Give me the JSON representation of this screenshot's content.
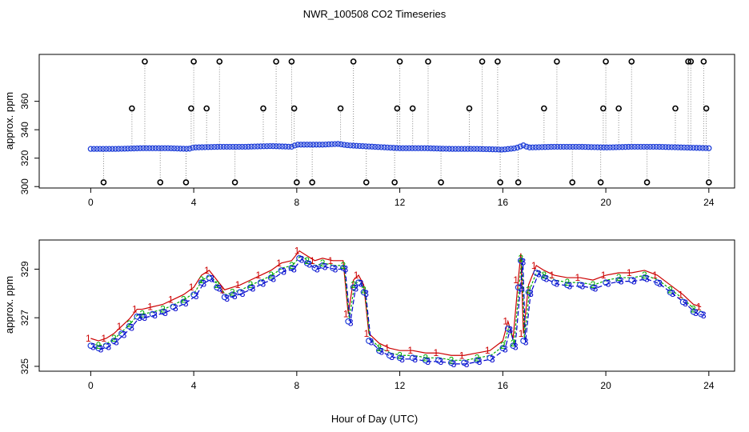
{
  "title": "NWR_100508  CO2 Timeseries",
  "xlabel": "Hour of Day (UTC)",
  "chart_data": [
    {
      "type": "scatter",
      "panel": "top",
      "ylabel": "approx. ppm",
      "xlim": [
        -2,
        25
      ],
      "ylim": [
        299,
        393
      ],
      "xticks": [
        0,
        4,
        8,
        12,
        16,
        20,
        24
      ],
      "yticks": [
        300,
        320,
        340,
        360
      ],
      "baseline": [
        [
          0,
          326.5
        ],
        [
          1,
          326.5
        ],
        [
          2,
          327
        ],
        [
          3,
          327
        ],
        [
          3.8,
          326.5
        ],
        [
          4,
          327.5
        ],
        [
          5,
          328
        ],
        [
          6,
          328
        ],
        [
          7,
          328.5
        ],
        [
          7.8,
          328
        ],
        [
          8,
          329.5
        ],
        [
          9,
          329.5
        ],
        [
          9.6,
          330
        ],
        [
          10,
          329
        ],
        [
          11,
          328
        ],
        [
          12,
          327
        ],
        [
          13,
          327
        ],
        [
          14,
          326.5
        ],
        [
          15,
          326.5
        ],
        [
          16,
          326
        ],
        [
          16.5,
          327
        ],
        [
          16.8,
          329
        ],
        [
          17,
          327.5
        ],
        [
          18,
          328
        ],
        [
          19,
          328
        ],
        [
          20,
          327.5
        ],
        [
          21,
          328
        ],
        [
          22,
          328
        ],
        [
          23,
          327.5
        ],
        [
          24,
          327
        ]
      ],
      "outliers": [
        [
          0.5,
          303
        ],
        [
          1.6,
          355
        ],
        [
          2.1,
          388
        ],
        [
          2.7,
          303
        ],
        [
          3.7,
          303
        ],
        [
          3.9,
          355
        ],
        [
          4,
          388
        ],
        [
          4.5,
          355
        ],
        [
          5,
          388
        ],
        [
          5.6,
          303
        ],
        [
          6.7,
          355
        ],
        [
          7.2,
          388
        ],
        [
          7.8,
          388
        ],
        [
          7.9,
          355
        ],
        [
          8,
          303
        ],
        [
          8.6,
          303
        ],
        [
          9.7,
          355
        ],
        [
          10.2,
          388
        ],
        [
          10.7,
          303
        ],
        [
          11.8,
          303
        ],
        [
          11.9,
          355
        ],
        [
          12,
          388
        ],
        [
          12.5,
          355
        ],
        [
          13.1,
          388
        ],
        [
          13.6,
          303
        ],
        [
          14.7,
          355
        ],
        [
          15.2,
          388
        ],
        [
          15.8,
          388
        ],
        [
          15.9,
          303
        ],
        [
          16.6,
          303
        ],
        [
          17.6,
          355
        ],
        [
          18.1,
          388
        ],
        [
          18.7,
          303
        ],
        [
          19.8,
          303
        ],
        [
          19.9,
          355
        ],
        [
          20,
          388
        ],
        [
          20.5,
          355
        ],
        [
          21,
          388
        ],
        [
          21.6,
          303
        ],
        [
          22.7,
          355
        ],
        [
          23.2,
          388
        ],
        [
          23.3,
          388
        ],
        [
          23.8,
          388
        ],
        [
          23.9,
          355
        ],
        [
          24,
          303
        ]
      ]
    },
    {
      "type": "line",
      "panel": "bottom",
      "ylabel": "approx. ppm",
      "xlim": [
        -2,
        25
      ],
      "ylim": [
        324.8,
        330.2
      ],
      "xticks": [
        0,
        4,
        8,
        12,
        16,
        20,
        24
      ],
      "yticks": [
        325,
        327,
        329
      ],
      "series": [
        {
          "name": "1",
          "color": "#cc0000",
          "offset": 0.35
        },
        {
          "name": "2",
          "color": "#00aa00",
          "offset": 0.15
        },
        {
          "name": "3",
          "color": "#0000cc",
          "offset": 0
        }
      ],
      "x": [
        0,
        0.3,
        0.6,
        0.9,
        1.2,
        1.5,
        1.8,
        2.0,
        2.4,
        2.8,
        3.2,
        3.6,
        4.0,
        4.3,
        4.6,
        4.9,
        5.2,
        5.5,
        5.8,
        6.2,
        6.6,
        7.0,
        7.4,
        7.8,
        8.1,
        8.4,
        8.7,
        9.0,
        9.4,
        9.8,
        10.0,
        10.2,
        10.4,
        10.6,
        10.8,
        11.2,
        11.6,
        12.0,
        12.5,
        13.0,
        13.5,
        14.0,
        14.5,
        15.0,
        15.5,
        16.0,
        16.2,
        16.4,
        16.6,
        16.7,
        16.8,
        17.0,
        17.3,
        17.6,
        18.0,
        18.5,
        19.0,
        19.5,
        20.0,
        20.5,
        21.0,
        21.5,
        22.0,
        22.5,
        23.0,
        23.4,
        23.7
      ],
      "values": [
        325.8,
        325.7,
        325.8,
        326.0,
        326.3,
        326.6,
        327.0,
        327.0,
        327.1,
        327.2,
        327.4,
        327.6,
        327.9,
        328.4,
        328.6,
        328.2,
        327.8,
        327.9,
        328.0,
        328.2,
        328.4,
        328.6,
        328.9,
        329.0,
        329.4,
        329.2,
        329.0,
        329.1,
        329.0,
        329.0,
        326.8,
        328.2,
        328.4,
        328.0,
        326.0,
        325.6,
        325.4,
        325.3,
        325.3,
        325.2,
        325.2,
        325.1,
        325.1,
        325.2,
        325.3,
        325.7,
        326.5,
        325.8,
        328.2,
        329.3,
        326.0,
        328.0,
        328.8,
        328.6,
        328.4,
        328.3,
        328.3,
        328.2,
        328.4,
        328.5,
        328.5,
        328.6,
        328.4,
        328.0,
        327.6,
        327.2,
        327.1
      ]
    }
  ]
}
